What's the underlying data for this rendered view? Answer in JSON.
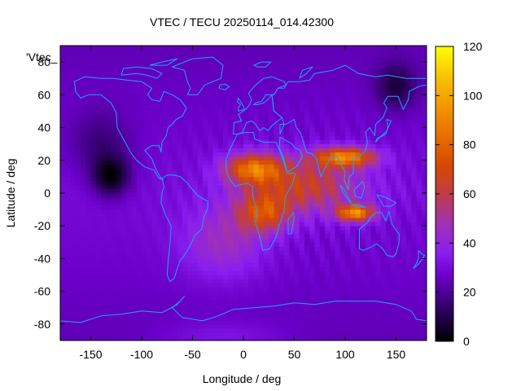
{
  "chart_data": {
    "type": "heatmap",
    "title": "VTEC / TECU 20250114_014.42300",
    "xlabel": "Longitude / deg",
    "ylabel": "Latitude / deg",
    "key_label": "'Vtec_",
    "xlim": [
      -180,
      180
    ],
    "ylim": [
      -90,
      90
    ],
    "xticks": [
      -150,
      -100,
      -50,
      0,
      50,
      100,
      150
    ],
    "yticks": [
      -80,
      -60,
      -40,
      -20,
      0,
      20,
      40,
      60,
      80
    ],
    "colorbar": {
      "range": [
        0,
        120
      ],
      "ticks": [
        0,
        20,
        40,
        60,
        80,
        100,
        120
      ]
    },
    "grid_resolution_deg": {
      "lon": 5,
      "lat": 2.5
    },
    "background_vtec": 30,
    "features": [
      {
        "name": "equatorial-anomaly-africa-north",
        "lon": 10,
        "lat": 15,
        "peak_vtec": 90
      },
      {
        "name": "equatorial-anomaly-africa-south",
        "lon": 20,
        "lat": -12,
        "peak_vtec": 78
      },
      {
        "name": "equatorial-anomaly-asia-north",
        "lon": 100,
        "lat": 22,
        "peak_vtec": 95
      },
      {
        "name": "equatorial-anomaly-asia-south",
        "lon": 110,
        "lat": -12,
        "peak_vtec": 100
      },
      {
        "name": "equatorial-band",
        "lon": 60,
        "lat": 5,
        "peak_vtec": 68
      },
      {
        "name": "pacific-night-minimum",
        "lon": -130,
        "lat": 10,
        "min_vtec": 3
      },
      {
        "name": "siberia-minimum",
        "lon": 150,
        "lat": 65,
        "min_vtec": 8
      },
      {
        "name": "atlantic-south",
        "lon": -20,
        "lat": -30,
        "peak_vtec": 50
      }
    ],
    "colormap": "black-purple-red-orange-yellow",
    "coastlines_color": "#22a0ff"
  }
}
